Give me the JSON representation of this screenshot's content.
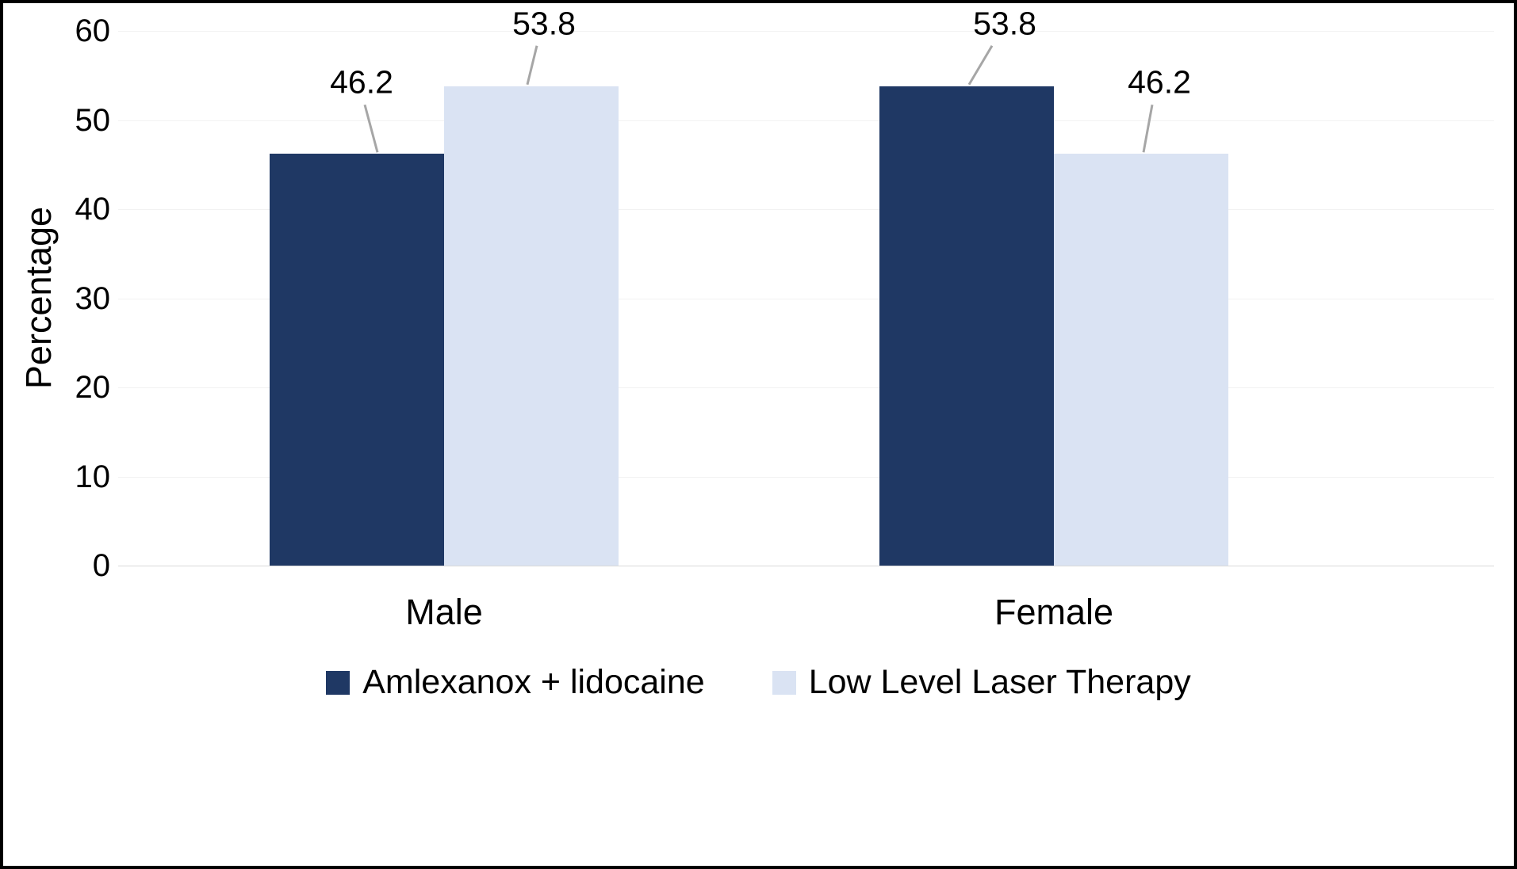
{
  "chart_data": {
    "type": "bar",
    "categories": [
      "Male",
      "Female"
    ],
    "series": [
      {
        "name": "Amlexanox + lidocaine",
        "values": [
          46.2,
          53.8
        ],
        "color": "#1F3864"
      },
      {
        "name": "Low Level Laser Therapy",
        "values": [
          53.8,
          46.2
        ],
        "color": "#DAE3F3"
      }
    ],
    "title": "",
    "xlabel": "",
    "ylabel": "Percentage",
    "ylim": [
      0,
      60
    ],
    "yticks": [
      0,
      10,
      20,
      30,
      40,
      50,
      60
    ],
    "show_data_labels": true,
    "data_labels": [
      "46.2",
      "53.8",
      "53.8",
      "46.2"
    ],
    "grid": "horizontal-faint",
    "legend_position": "bottom",
    "colors": {
      "bar_dark": "#1F3864",
      "bar_light": "#DAE3F3",
      "leader_line": "#A6A6A6",
      "text": "#000000",
      "border": "#000000"
    }
  }
}
